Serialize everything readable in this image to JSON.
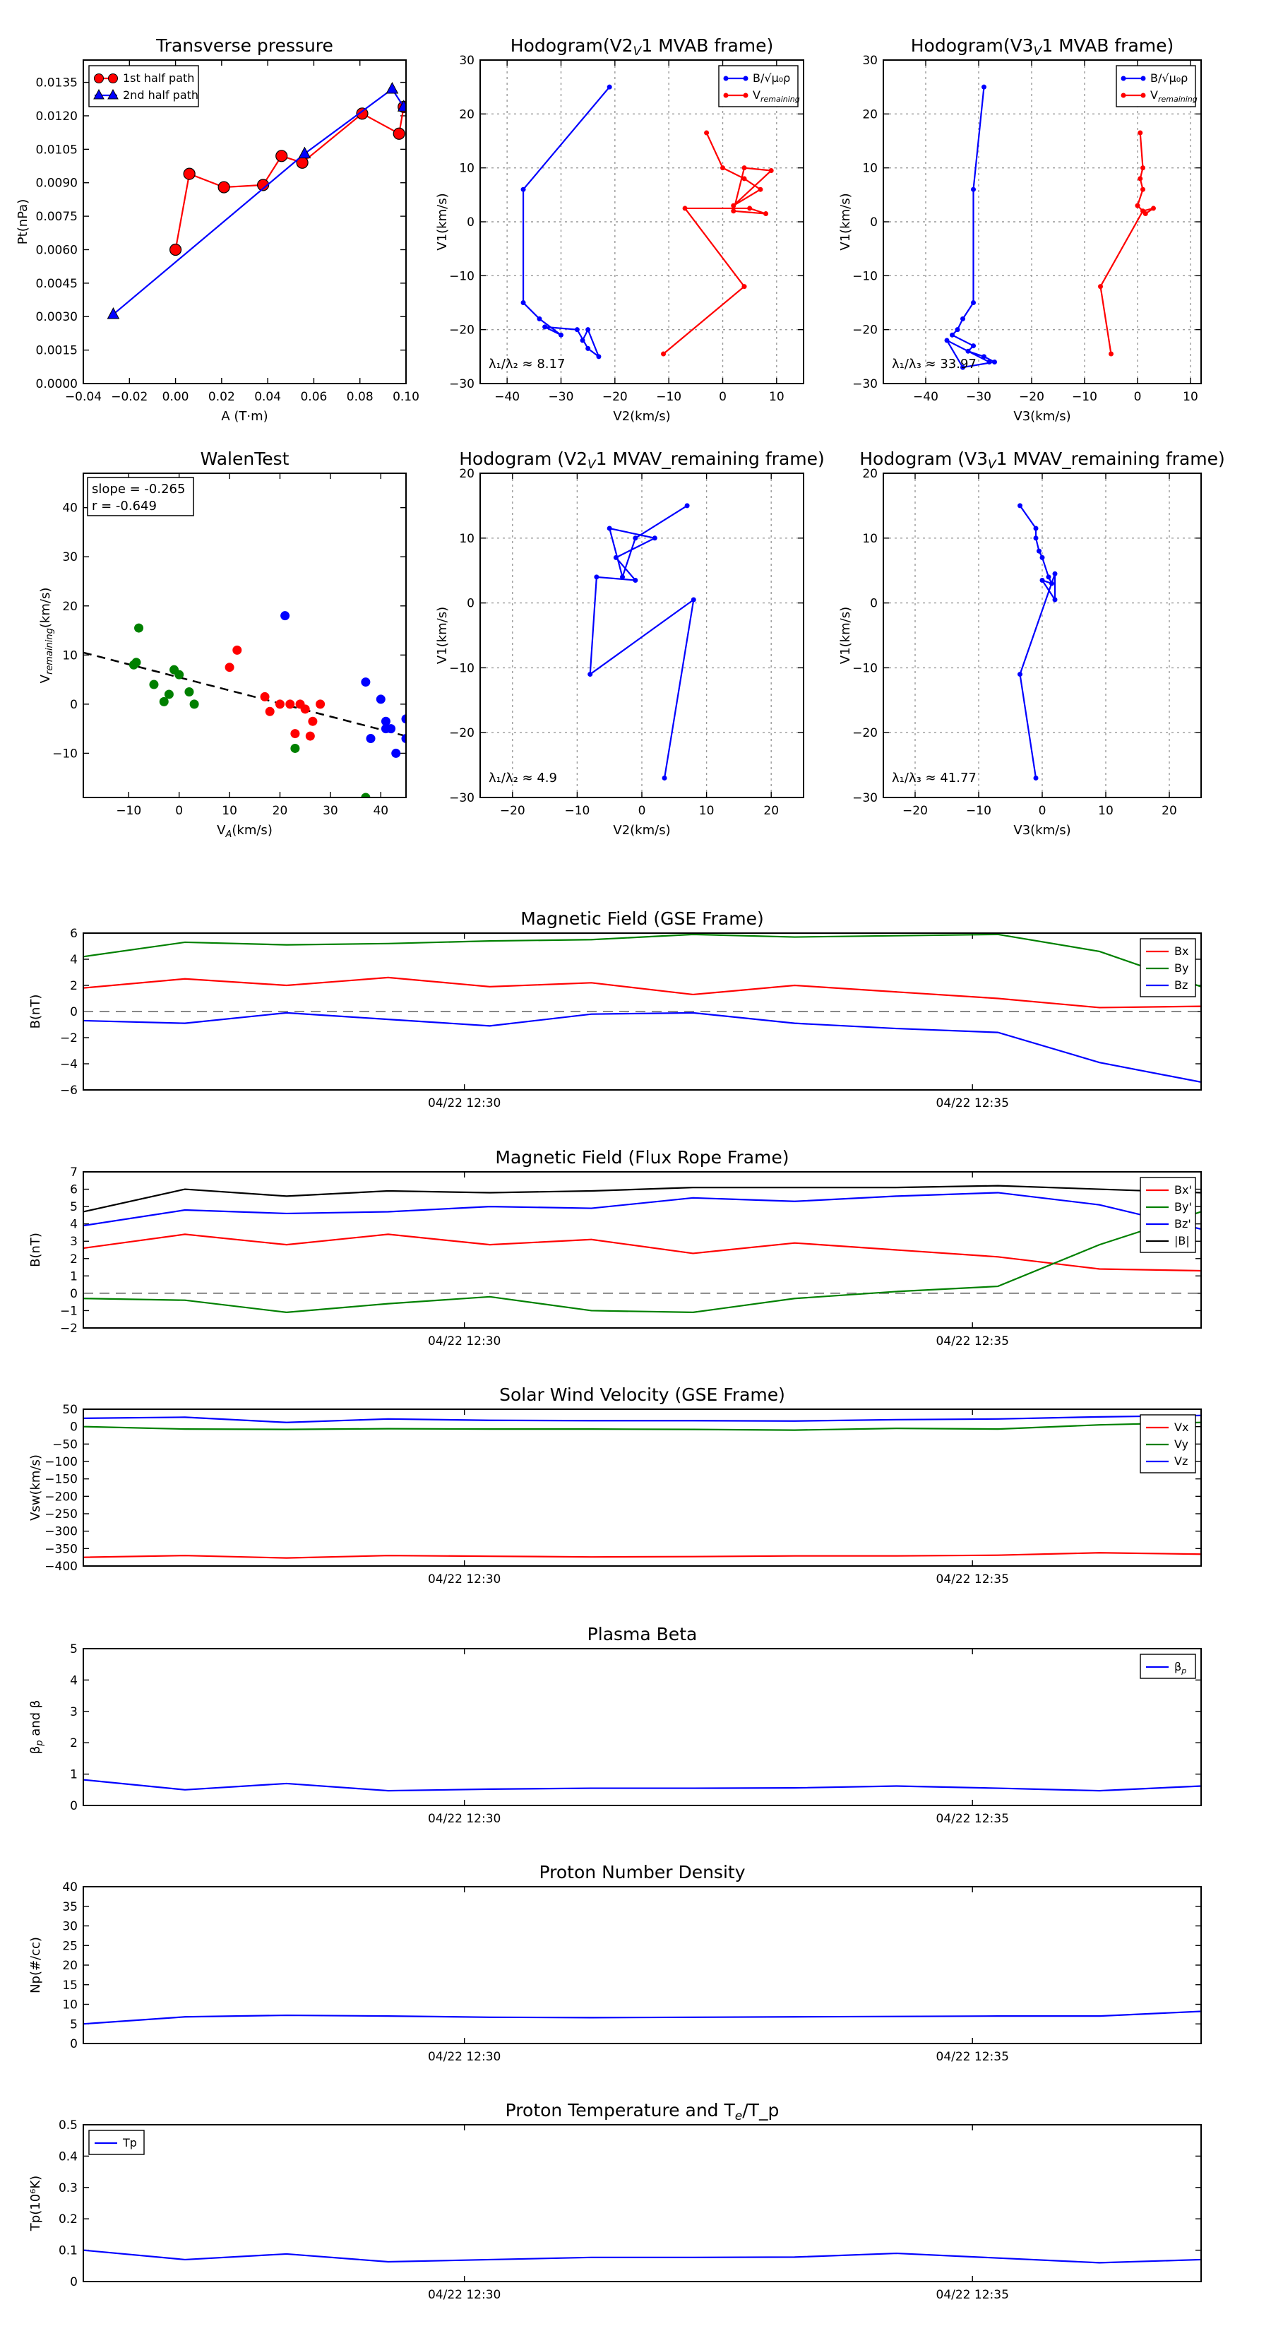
{
  "chart_data": [
    {
      "id": "p1",
      "type": "scatter",
      "title": "Transverse pressure",
      "xlabel": "A (T·m)",
      "ylabel": "Pt(nPa)",
      "xlim": [
        -0.04,
        0.1
      ],
      "ylim": [
        0,
        0.0145
      ],
      "xticks": [
        -0.04,
        -0.02,
        0.0,
        0.02,
        0.04,
        0.06,
        0.08,
        0.1
      ],
      "xtick_labels": [
        "−0.04",
        "−0.02",
        "0.00",
        "0.02",
        "0.04",
        "0.06",
        "0.08",
        "0.10"
      ],
      "yticks": [
        0,
        0.0015,
        0.003,
        0.0045,
        0.006,
        0.0075,
        0.009,
        0.0105,
        0.012,
        0.0135
      ],
      "ytick_labels": [
        "0.0000",
        "0.0015",
        "0.0030",
        "0.0045",
        "0.0060",
        "0.0075",
        "0.0090",
        "0.0105",
        "0.0120",
        "0.0135"
      ],
      "grid": false,
      "legend": "top-left",
      "series": [
        {
          "name": "1st half path",
          "color": "#ff0000",
          "marker": "circle",
          "x": [
            0.0,
            0.006,
            0.021,
            0.038,
            0.046,
            0.055,
            0.081,
            0.097,
            0.099
          ],
          "y": [
            0.006,
            0.0094,
            0.0088,
            0.0089,
            0.0102,
            0.0099,
            0.0121,
            0.0112,
            0.0124
          ]
        },
        {
          "name": "2nd half path",
          "color": "#0000ff",
          "marker": "triangle",
          "x": [
            -0.027,
            0.056,
            0.094,
            0.099
          ],
          "y": [
            0.0031,
            0.0103,
            0.0132,
            0.0124
          ]
        }
      ]
    },
    {
      "id": "p2",
      "type": "line",
      "title": "Hodogram(V2_V1 MVAB frame)",
      "xlabel": "V2(km/s)",
      "ylabel": "V1(km/s)",
      "xlim": [
        -45,
        15
      ],
      "ylim": [
        -30,
        30
      ],
      "xticks": [
        -40,
        -30,
        -20,
        -10,
        0,
        10
      ],
      "yticks": [
        -30,
        -20,
        -10,
        0,
        10,
        20,
        30
      ],
      "grid": true,
      "legend": "top-right",
      "annotation": "λ₁/λ₂ ≈ 8.17",
      "series": [
        {
          "name": "B/√μ₀ρ",
          "color": "#0000ff",
          "x": [
            -21,
            -37,
            -37,
            -34,
            -30,
            -33,
            -27,
            -25,
            -23,
            -25,
            -26
          ],
          "y": [
            25,
            6,
            -15,
            -18,
            -21,
            -19.5,
            -20,
            -23.5,
            -25,
            -20,
            -22
          ]
        },
        {
          "name": "V_remaining",
          "color": "#ff0000",
          "x": [
            -3,
            0,
            4,
            7,
            2,
            9,
            4,
            2,
            8,
            5,
            -7,
            4,
            -11
          ],
          "y": [
            16.5,
            10,
            8,
            6,
            3,
            9.5,
            10,
            2,
            1.5,
            2.5,
            2.5,
            -12,
            -24.5
          ]
        }
      ]
    },
    {
      "id": "p3",
      "type": "line",
      "title": "Hodogram(V3_V1 MVAB frame)",
      "xlabel": "V3(km/s)",
      "ylabel": "V1(km/s)",
      "xlim": [
        -48,
        12
      ],
      "ylim": [
        -30,
        30
      ],
      "xticks": [
        -40,
        -30,
        -20,
        -10,
        0,
        10
      ],
      "yticks": [
        -30,
        -20,
        -10,
        0,
        10,
        20,
        30
      ],
      "grid": true,
      "legend": "top-right",
      "annotation": "λ₁/λ₃ ≈ 33.97",
      "series": [
        {
          "name": "B/√μ₀ρ",
          "color": "#0000ff",
          "x": [
            -29,
            -31,
            -31,
            -33,
            -34,
            -35,
            -31,
            -32,
            -29,
            -27,
            -33,
            -36,
            -28
          ],
          "y": [
            25,
            6,
            -15,
            -18,
            -20,
            -21,
            -23,
            -24,
            -25,
            -26,
            -27,
            -22,
            -26
          ]
        },
        {
          "name": "V_remaining",
          "color": "#ff0000",
          "x": [
            0.5,
            1,
            0.5,
            1,
            0,
            1.5,
            3,
            1,
            -7,
            -5
          ],
          "y": [
            16.5,
            10,
            8,
            6,
            3,
            1.5,
            2.5,
            2,
            -12,
            -24.5
          ]
        }
      ]
    },
    {
      "id": "p4",
      "type": "scatter",
      "title": "WalenTest",
      "xlabel": "V_A(km/s)",
      "ylabel": "V_remaining(km/s)",
      "xlim": [
        -19,
        45
      ],
      "ylim": [
        -19,
        47
      ],
      "xticks": [
        -10,
        0,
        10,
        20,
        30,
        40
      ],
      "yticks": [
        -10,
        0,
        10,
        20,
        30,
        40
      ],
      "grid": false,
      "stats": [
        "slope = -0.265",
        "r = -0.649"
      ],
      "fit_line": {
        "x": [
          -19,
          45
        ],
        "y": [
          10.5,
          -6.5
        ]
      },
      "series": [
        {
          "name": "",
          "color": "#008000",
          "x": [
            -8,
            -9,
            -8.5,
            -5,
            -3,
            -2,
            -1,
            0,
            2,
            3,
            23,
            37
          ],
          "y": [
            15.5,
            8,
            8.5,
            4,
            0.5,
            2,
            7,
            6,
            2.5,
            0,
            -9,
            -19
          ]
        },
        {
          "name": "",
          "color": "#ff0000",
          "x": [
            10,
            11.5,
            17,
            18,
            20,
            22,
            23,
            24,
            25,
            26,
            26.5,
            28
          ],
          "y": [
            7.5,
            11,
            1.5,
            -1.5,
            0,
            0,
            -6,
            0,
            -1,
            -6.5,
            -3.5,
            0
          ]
        },
        {
          "name": "",
          "color": "#0000ff",
          "x": [
            21,
            37,
            38,
            40,
            41,
            41,
            42,
            43,
            45,
            45,
            46
          ],
          "y": [
            18,
            4.5,
            -7,
            1,
            -3.5,
            -5,
            -5,
            -10,
            -3,
            -7,
            -7.5
          ]
        }
      ]
    },
    {
      "id": "p5",
      "type": "line",
      "title": "Hodogram (V2_V1 MVAV_remaining frame)",
      "xlabel": "V2(km/s)",
      "ylabel": "V1(km/s)",
      "xlim": [
        -25,
        25
      ],
      "ylim": [
        -30,
        20
      ],
      "xticks": [
        -20,
        -10,
        0,
        10,
        20
      ],
      "yticks": [
        -30,
        -20,
        -10,
        0,
        10,
        20
      ],
      "grid": true,
      "annotation": "λ₁/λ₂ ≈ 4.9",
      "series": [
        {
          "name": "",
          "color": "#0000ff",
          "x": [
            7,
            -1,
            -3,
            -5,
            2,
            -4,
            -1,
            -7,
            -8,
            8,
            3.5
          ],
          "y": [
            15,
            10,
            4,
            11.5,
            10,
            7,
            3.5,
            4,
            -11,
            0.5,
            -27
          ]
        }
      ]
    },
    {
      "id": "p6",
      "type": "line",
      "title": "Hodogram (V3_V1 MVAV_remaining frame)",
      "xlabel": "V3(km/s)",
      "ylabel": "V1(km/s)",
      "xlim": [
        -25,
        25
      ],
      "ylim": [
        -30,
        20
      ],
      "xticks": [
        -20,
        -10,
        0,
        10,
        20
      ],
      "yticks": [
        -30,
        -20,
        -10,
        0,
        10,
        20
      ],
      "grid": true,
      "annotation": "λ₁/λ₃ ≈ 41.77",
      "series": [
        {
          "name": "",
          "color": "#0000ff",
          "x": [
            -3.5,
            -1,
            -1,
            -0.5,
            0,
            1,
            1.5,
            0,
            2,
            2,
            -3.5,
            -1
          ],
          "y": [
            15,
            11.5,
            10,
            8,
            7,
            4,
            3,
            3.5,
            0.5,
            4.5,
            -11,
            -27
          ]
        }
      ]
    },
    {
      "id": "t1",
      "type": "line",
      "title": "Magnetic Field (GSE Frame)",
      "ylabel": "B(nT)",
      "xlim": [
        0,
        11
      ],
      "ylim": [
        -6,
        6
      ],
      "yticks": [
        -6,
        -4,
        -2,
        0,
        2,
        4,
        6
      ],
      "xtick_pos": [
        3.75,
        8.75
      ],
      "xtick_labels": [
        "04/22 12:30",
        "04/22 12:35"
      ],
      "hline": 0,
      "legend": "top-right",
      "x": [
        0,
        1,
        2,
        3,
        4,
        5,
        6,
        7,
        8,
        9,
        10,
        11
      ],
      "series": [
        {
          "name": "Bx",
          "color": "#ff0000",
          "values": [
            1.8,
            2.5,
            2.0,
            2.6,
            1.9,
            2.2,
            1.3,
            2.0,
            1.5,
            1.0,
            0.3,
            0.4
          ]
        },
        {
          "name": "By",
          "color": "#008000",
          "values": [
            4.2,
            5.3,
            5.1,
            5.2,
            5.4,
            5.5,
            5.9,
            5.7,
            5.8,
            5.9,
            4.6,
            1.9
          ]
        },
        {
          "name": "Bz",
          "color": "#0000ff",
          "values": [
            -0.7,
            -0.9,
            -0.1,
            -0.6,
            -1.1,
            -0.2,
            -0.1,
            -0.9,
            -1.3,
            -1.6,
            -3.9,
            -5.4
          ]
        }
      ]
    },
    {
      "id": "t2",
      "type": "line",
      "title": "Magnetic Field (Flux Rope Frame)",
      "ylabel": "B(nT)",
      "xlim": [
        0,
        11
      ],
      "ylim": [
        -2,
        7
      ],
      "yticks": [
        -2,
        -1,
        0,
        1,
        2,
        3,
        4,
        5,
        6,
        7
      ],
      "xtick_pos": [
        3.75,
        8.75
      ],
      "xtick_labels": [
        "04/22 12:30",
        "04/22 12:35"
      ],
      "hline": 0,
      "legend": "top-right",
      "x": [
        0,
        1,
        2,
        3,
        4,
        5,
        6,
        7,
        8,
        9,
        10,
        11
      ],
      "series": [
        {
          "name": "Bx'",
          "color": "#ff0000",
          "values": [
            2.6,
            3.4,
            2.8,
            3.4,
            2.8,
            3.1,
            2.3,
            2.9,
            2.5,
            2.1,
            1.4,
            1.3
          ]
        },
        {
          "name": "By'",
          "color": "#008000",
          "values": [
            -0.3,
            -0.4,
            -1.1,
            -0.6,
            -0.2,
            -1.0,
            -1.1,
            -0.3,
            0.1,
            0.4,
            2.8,
            4.7
          ]
        },
        {
          "name": "Bz'",
          "color": "#0000ff",
          "values": [
            3.9,
            4.8,
            4.6,
            4.7,
            5.0,
            4.9,
            5.5,
            5.3,
            5.6,
            5.8,
            5.1,
            3.7
          ]
        },
        {
          "name": "|B|",
          "color": "#000000",
          "values": [
            4.7,
            6.0,
            5.6,
            5.9,
            5.8,
            5.9,
            6.1,
            6.1,
            6.1,
            6.2,
            6.0,
            5.8
          ]
        }
      ]
    },
    {
      "id": "t3",
      "type": "line",
      "title": "Solar Wind Velocity (GSE Frame)",
      "ylabel": "Vsw(km/s)",
      "xlim": [
        0,
        11
      ],
      "ylim": [
        -400,
        50
      ],
      "yticks": [
        -400,
        -350,
        -300,
        -250,
        -200,
        -150,
        -100,
        -50,
        0,
        50
      ],
      "xtick_pos": [
        3.75,
        8.75
      ],
      "xtick_labels": [
        "04/22 12:30",
        "04/22 12:35"
      ],
      "legend": "top-right",
      "x": [
        0,
        1,
        2,
        3,
        4,
        5,
        6,
        7,
        8,
        9,
        10,
        11
      ],
      "series": [
        {
          "name": "Vx",
          "color": "#ff0000",
          "values": [
            -375,
            -370,
            -377,
            -370,
            -372,
            -374,
            -373,
            -371,
            -371,
            -369,
            -362,
            -366
          ]
        },
        {
          "name": "Vy",
          "color": "#008000",
          "values": [
            0,
            -7,
            -8,
            -6,
            -7,
            -7,
            -8,
            -10,
            -5,
            -7,
            5,
            12
          ]
        },
        {
          "name": "Vz",
          "color": "#0000ff",
          "values": [
            24,
            27,
            12,
            22,
            18,
            17,
            17,
            16,
            20,
            22,
            28,
            32
          ]
        }
      ]
    },
    {
      "id": "t4",
      "type": "line",
      "title": "Plasma Beta",
      "ylabel": "β_p and β",
      "xlim": [
        0,
        11
      ],
      "ylim": [
        0,
        5
      ],
      "yticks": [
        0,
        1,
        2,
        3,
        4,
        5
      ],
      "xtick_pos": [
        3.75,
        8.75
      ],
      "xtick_labels": [
        "04/22 12:30",
        "04/22 12:35"
      ],
      "legend": "top-right",
      "x": [
        0,
        1,
        2,
        3,
        4,
        5,
        6,
        7,
        8,
        9,
        10,
        11
      ],
      "series": [
        {
          "name": "β_p",
          "color": "#0000ff",
          "values": [
            0.82,
            0.5,
            0.7,
            0.47,
            0.52,
            0.55,
            0.55,
            0.56,
            0.62,
            0.55,
            0.47,
            0.62
          ]
        }
      ]
    },
    {
      "id": "t5",
      "type": "line",
      "title": "Proton Number Density",
      "ylabel": "Np(#/cc)",
      "xlim": [
        0,
        11
      ],
      "ylim": [
        0,
        40
      ],
      "yticks": [
        0,
        5,
        10,
        15,
        20,
        25,
        30,
        35,
        40
      ],
      "xtick_pos": [
        3.75,
        8.75
      ],
      "xtick_labels": [
        "04/22 12:30",
        "04/22 12:35"
      ],
      "x": [
        0,
        1,
        2,
        3,
        4,
        5,
        6,
        7,
        8,
        9,
        10,
        11
      ],
      "series": [
        {
          "name": "",
          "color": "#0000ff",
          "values": [
            5.0,
            6.8,
            7.2,
            7.0,
            6.7,
            6.6,
            6.7,
            6.8,
            6.9,
            7.0,
            7.0,
            8.2
          ]
        }
      ]
    },
    {
      "id": "t6",
      "type": "line",
      "title": "Proton Temperature and T_e/T_p",
      "ylabel": "Tp(10⁶K)",
      "xlim": [
        0,
        11
      ],
      "ylim": [
        0,
        0.5
      ],
      "yticks": [
        0,
        0.1,
        0.2,
        0.3,
        0.4,
        0.5
      ],
      "xtick_pos": [
        3.75,
        8.75
      ],
      "xtick_labels": [
        "04/22 12:30",
        "04/22 12:35"
      ],
      "legend": "top-left",
      "x": [
        0,
        1,
        2,
        3,
        4,
        5,
        6,
        7,
        8,
        9,
        10,
        11
      ],
      "series": [
        {
          "name": "Tp",
          "color": "#0000ff",
          "values": [
            0.1,
            0.07,
            0.088,
            0.063,
            0.07,
            0.077,
            0.077,
            0.078,
            0.09,
            0.075,
            0.06,
            0.07
          ]
        }
      ]
    }
  ]
}
